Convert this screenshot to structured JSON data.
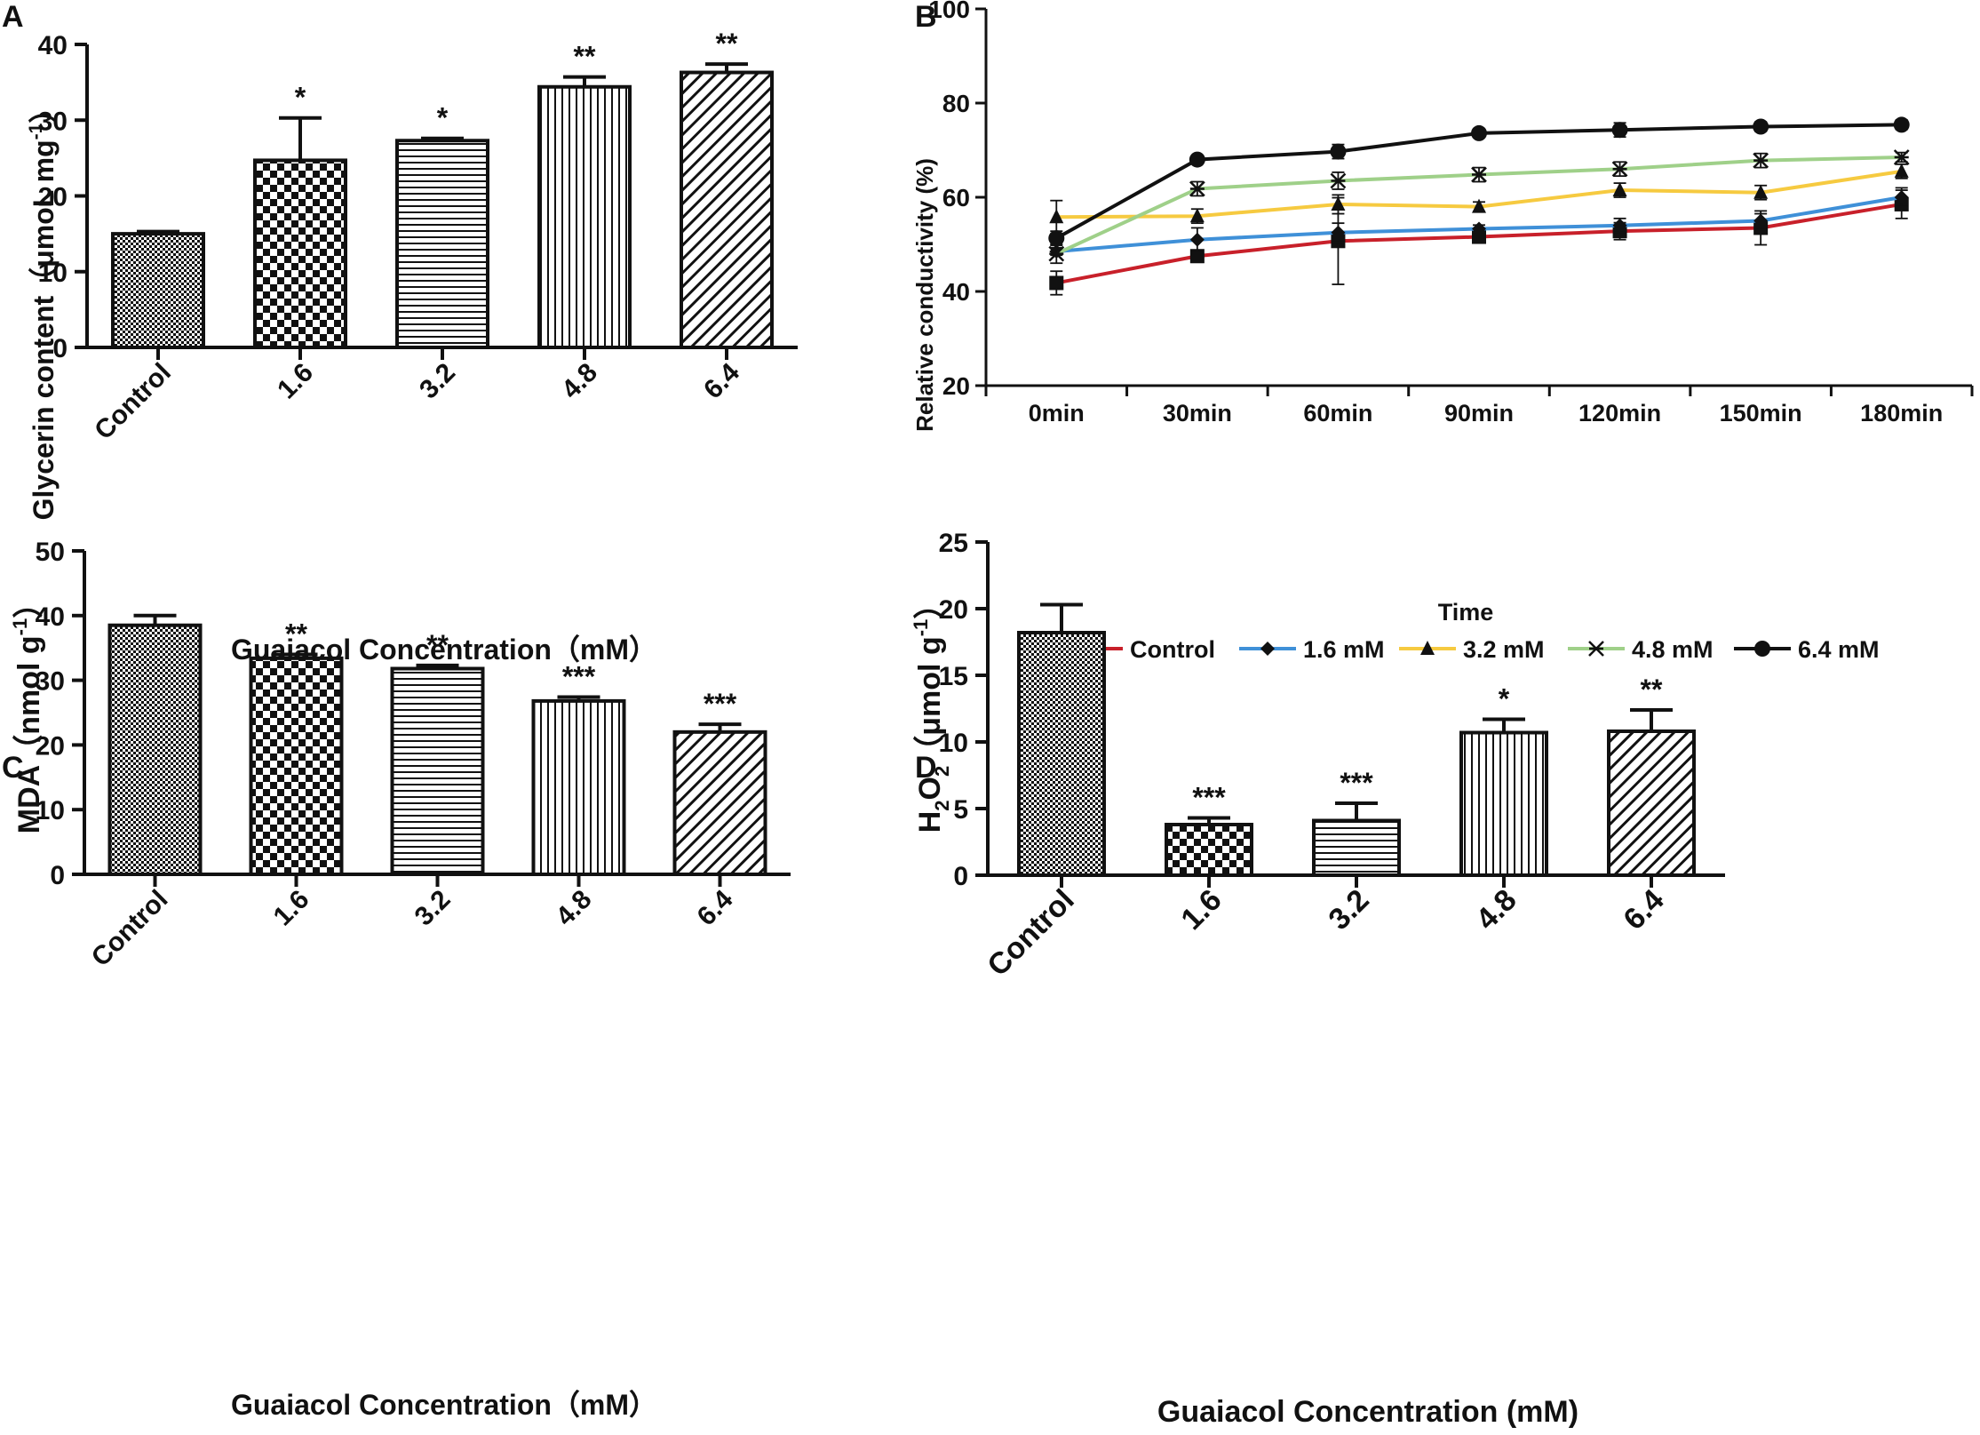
{
  "figure": {
    "x_title": "Guaiacol Concentration（mM）",
    "x_title_d": "Guaiacol Concentration (mM)"
  },
  "chart_data": [
    {
      "panel": "A",
      "type": "bar",
      "categories": [
        "Control",
        "1.6",
        "3.2",
        "4.8",
        "6.4"
      ],
      "values": [
        15,
        24.7,
        27.3,
        34.4,
        36.3
      ],
      "errors": [
        0.3,
        5.6,
        0.3,
        1.3,
        1.1
      ],
      "significance": [
        "",
        "*",
        "*",
        "**",
        "**"
      ],
      "patterns": [
        "fine-check",
        "check",
        "hlines",
        "vlines",
        "diag"
      ],
      "ylabel_main": "Glycerin content（μmoL mg",
      "ylabel_sup": "-1",
      "ylabel_end": "）",
      "xlabel": "Guaiacol Concentration（mM）",
      "ylim": [
        0,
        40
      ],
      "yticks": [
        0,
        10,
        20,
        30,
        40
      ]
    },
    {
      "panel": "B",
      "type": "line",
      "x": [
        "0min",
        "30min",
        "60min",
        "90min",
        "120min",
        "150min",
        "180min"
      ],
      "xlabel": "Time",
      "ylabel": "Relative conductivity (%)",
      "ylim": [
        20,
        100
      ],
      "yticks": [
        20,
        40,
        60,
        80,
        100
      ],
      "series": [
        {
          "name": "Control",
          "color": "#c8202a",
          "marker": "square",
          "values": [
            41.8,
            47.5,
            50.7,
            51.6,
            52.8,
            53.5,
            58.5
          ],
          "errors": [
            2.5,
            1.3,
            9.2,
            1.0,
            1.8,
            3.6,
            3.0
          ]
        },
        {
          "name": "1.6 mM",
          "color": "#3f90d8",
          "marker": "diamond",
          "values": [
            48.5,
            51.0,
            52.5,
            53.3,
            54.0,
            55.0,
            60.0
          ],
          "errors": [
            0.8,
            2.5,
            2.0,
            0.8,
            1.5,
            1.5,
            2.0
          ]
        },
        {
          "name": "3.2 mM",
          "color": "#f6ca40",
          "marker": "triangle",
          "values": [
            55.8,
            56.0,
            58.5,
            58.0,
            61.5,
            61.0,
            65.5
          ],
          "errors": [
            3.5,
            1.5,
            2.0,
            1.0,
            1.5,
            1.5,
            1.5
          ]
        },
        {
          "name": "4.8 mM",
          "color": "#9fd089",
          "marker": "asterisk",
          "values": [
            48.0,
            61.8,
            63.5,
            64.8,
            66.0,
            67.8,
            68.5
          ],
          "errors": [
            2.0,
            1.5,
            1.8,
            1.5,
            1.5,
            1.5,
            1.0
          ]
        },
        {
          "name": "6.4 mM",
          "color": "#111111",
          "marker": "circle",
          "values": [
            51.3,
            68.0,
            69.7,
            73.6,
            74.3,
            75.0,
            75.4
          ],
          "errors": [
            1.5,
            0.8,
            1.5,
            0.8,
            1.5,
            1.0,
            1.0
          ]
        }
      ]
    },
    {
      "panel": "C",
      "type": "bar",
      "categories": [
        "Control",
        "1.6",
        "3.2",
        "4.8",
        "6.4"
      ],
      "values": [
        38.5,
        33.4,
        31.8,
        26.8,
        22.0
      ],
      "errors": [
        1.5,
        0.6,
        0.5,
        0.6,
        1.2
      ],
      "significance": [
        "",
        "**",
        "**",
        "***",
        "***"
      ],
      "patterns": [
        "fine-check",
        "check",
        "hlines",
        "vlines",
        "diag"
      ],
      "ylabel_main": "MDA（nmol g",
      "ylabel_sup": "-1",
      "ylabel_end": "）",
      "xlabel": "Guaiacol Concentration（mM）",
      "ylim": [
        0,
        50
      ],
      "yticks": [
        0,
        10,
        20,
        30,
        40,
        50
      ]
    },
    {
      "panel": "D",
      "type": "bar",
      "categories": [
        "Control",
        "1.6",
        "3.2",
        "4.8",
        "6.4"
      ],
      "values": [
        18.2,
        3.8,
        4.1,
        10.7,
        10.8
      ],
      "errors": [
        2.1,
        0.5,
        1.3,
        1.0,
        1.6
      ],
      "significance": [
        "",
        "***",
        "***",
        "*",
        "**"
      ],
      "patterns": [
        "fine-check",
        "check",
        "hlines",
        "vlines",
        "diag"
      ],
      "ylabel_h": "H",
      "ylabel_sub": "2",
      "ylabel_o": "O",
      "ylabel_sub2": "2",
      "ylabel_rest": "（μmol g",
      "ylabel_sup": "-1",
      "ylabel_end": "）",
      "xlabel": "Guaiacol Concentration (mM)",
      "ylim": [
        0,
        25
      ],
      "yticks": [
        0,
        5,
        10,
        15,
        20,
        25
      ]
    }
  ]
}
